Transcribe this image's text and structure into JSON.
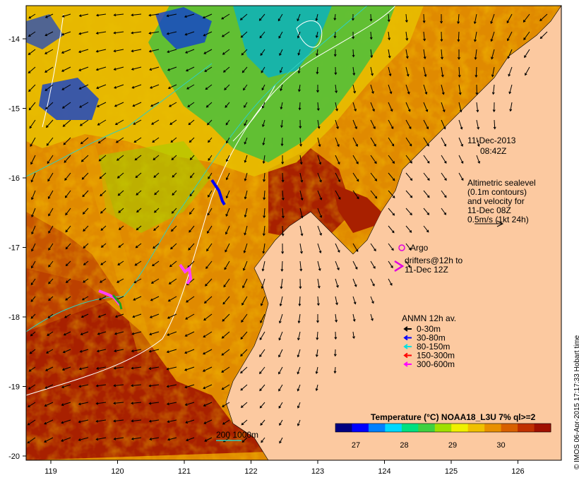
{
  "date": "11-Dec-2013",
  "time": "08:42Z",
  "altimetry": {
    "line1": "Altimetric sealevel",
    "line2": "(0.1m contours)",
    "line3": "and velocity for",
    "line4": "11-Dec 08Z",
    "line5": "0.5m/s (1kt 24h)"
  },
  "argo_label": "Argo",
  "drifters": {
    "line1": "drifters@12h to",
    "line2": "11-Dec 12Z"
  },
  "anmn": {
    "title": "ANMN 12h av.",
    "items": [
      {
        "label": "0-30m",
        "color": "#000000"
      },
      {
        "label": "30-80m",
        "color": "#0000ff"
      },
      {
        "label": "80-150m",
        "color": "#00e0e0"
      },
      {
        "label": "150-300m",
        "color": "#ff0000"
      },
      {
        "label": "300-600m",
        "color": "#ff00ff"
      }
    ]
  },
  "colorbar": {
    "title": "Temperature (°C) NOAA18_L3U 7% ql>=2",
    "ticks": [
      "27",
      "28",
      "29",
      "30"
    ],
    "colors": [
      "#000080",
      "#0000ff",
      "#0080ff",
      "#00d8ff",
      "#00e080",
      "#40d040",
      "#a0e000",
      "#f0f000",
      "#f0c000",
      "#e89000",
      "#d86000",
      "#c03000",
      "#a01000"
    ]
  },
  "isobath_label": "200  1000m",
  "x_ticks": [
    "119",
    "120",
    "121",
    "122",
    "123",
    "124",
    "125",
    "126"
  ],
  "y_ticks": [
    "-14",
    "-15",
    "-16",
    "-17",
    "-18",
    "-19",
    "-20"
  ],
  "credit": "© IMOS 06-Apr-2015 17:17:33 Hobart time",
  "colors": {
    "land": "#fcc9a0",
    "warm": "#a82000",
    "mid": "#e08a00",
    "cool": "#40c040",
    "cold": "#1040d0"
  }
}
